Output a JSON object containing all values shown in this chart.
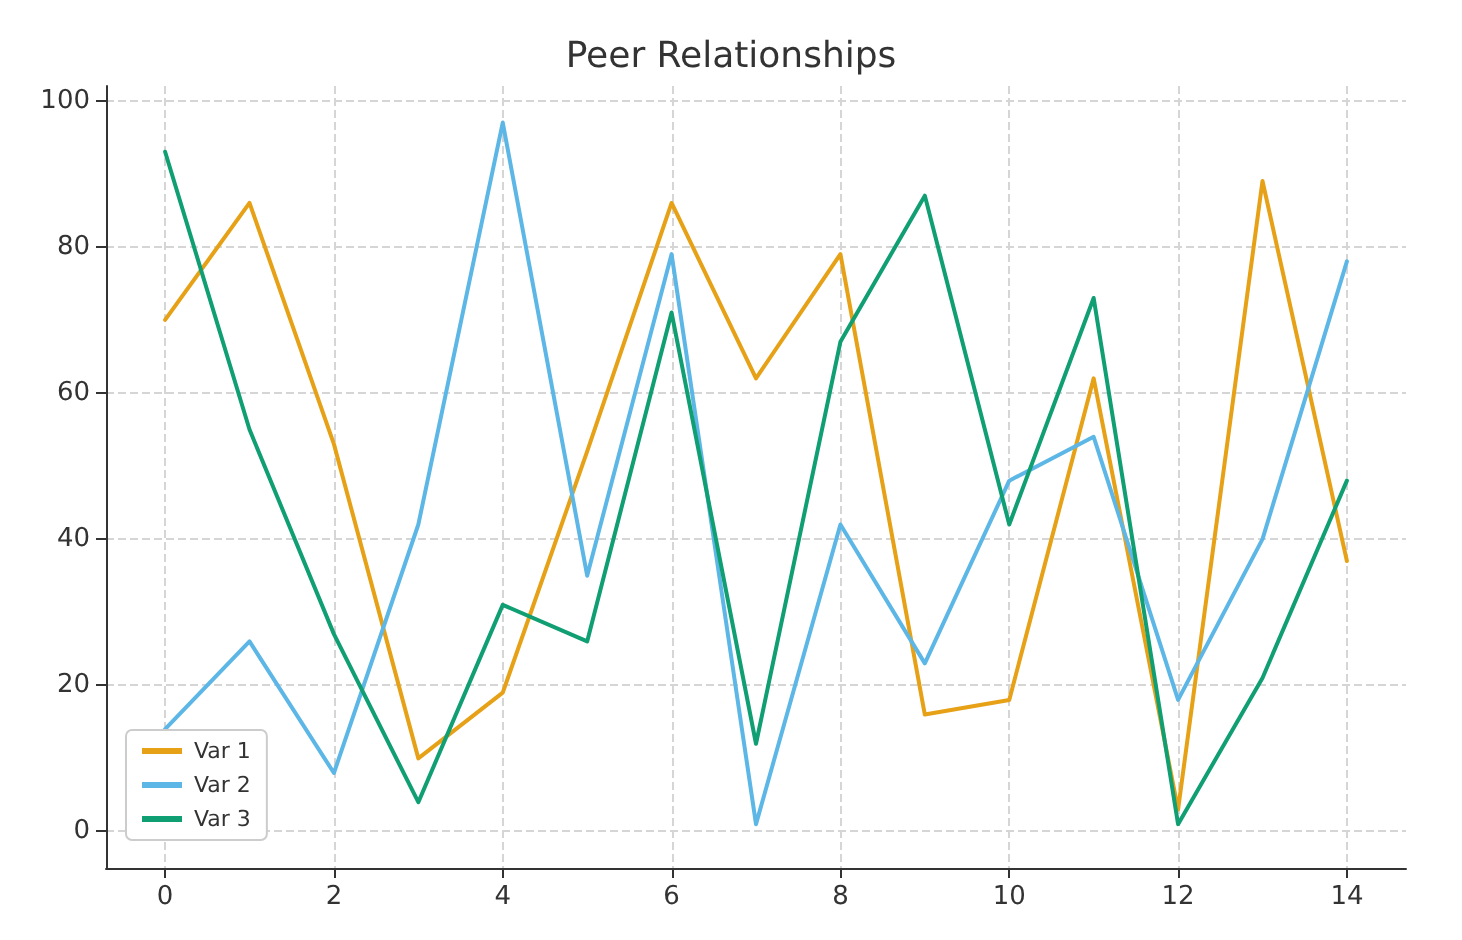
{
  "chart_data": {
    "type": "line",
    "title": "Peer Relationships",
    "x": [
      0,
      1,
      2,
      3,
      4,
      5,
      6,
      7,
      8,
      9,
      10,
      11,
      12,
      13,
      14
    ],
    "series": [
      {
        "name": "Var 1",
        "color": "#e6a117",
        "values": [
          70,
          86,
          53,
          10,
          19,
          52,
          86,
          62,
          79,
          16,
          18,
          62,
          3,
          89,
          37
        ]
      },
      {
        "name": "Var 2",
        "color": "#5db7e6",
        "values": [
          14,
          26,
          8,
          42,
          97,
          35,
          79,
          1,
          42,
          23,
          48,
          54,
          18,
          40,
          78
        ]
      },
      {
        "name": "Var 3",
        "color": "#109e73",
        "values": [
          93,
          55,
          27,
          4,
          31,
          26,
          71,
          12,
          67,
          87,
          42,
          73,
          1,
          21,
          48
        ]
      }
    ],
    "xlim": [
      -0.7,
      14.7
    ],
    "ylim": [
      -5,
      102
    ],
    "xticks": [
      0,
      2,
      4,
      6,
      8,
      10,
      12,
      14
    ],
    "yticks": [
      0,
      20,
      40,
      60,
      80,
      100
    ],
    "grid": true,
    "legend": "bottom left",
    "marker": "none",
    "line_style": "solid"
  }
}
